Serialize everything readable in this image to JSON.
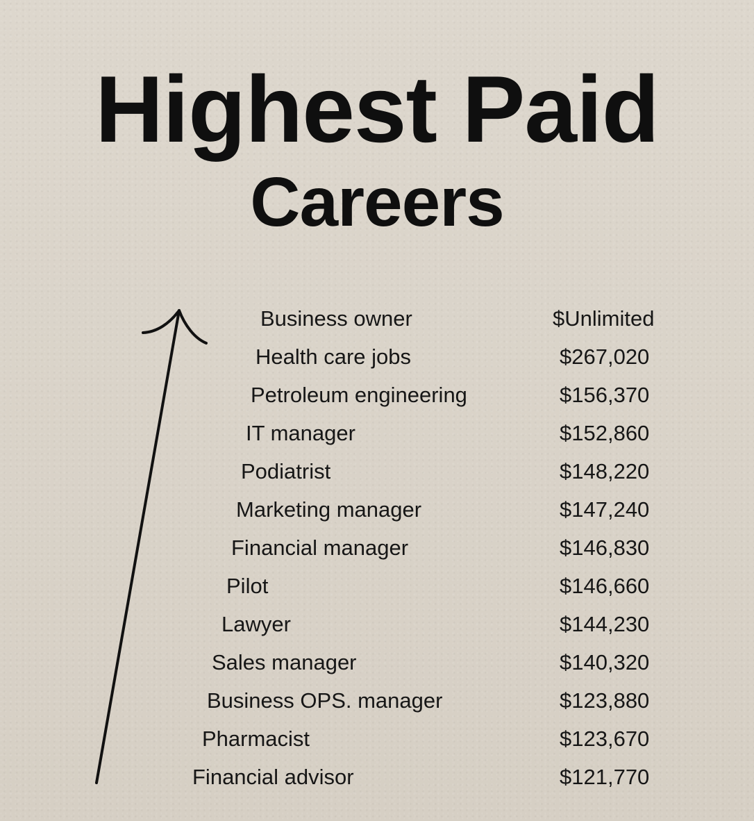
{
  "title": {
    "line1": "Highest Paid",
    "line2": "Careers"
  },
  "arrow_icon": "up-arrow-icon",
  "careers": [
    {
      "name": "Business owner",
      "salary": "$Unlimited"
    },
    {
      "name": "Health care jobs",
      "salary": "$267,020"
    },
    {
      "name": "Petroleum engineering",
      "salary": "$156,370"
    },
    {
      "name": "IT manager",
      "salary": "$152,860"
    },
    {
      "name": "Podiatrist",
      "salary": "$148,220"
    },
    {
      "name": "Marketing manager",
      "salary": "$147,240"
    },
    {
      "name": "Financial manager",
      "salary": "$146,830"
    },
    {
      "name": "Pilot",
      "salary": "$146,660"
    },
    {
      "name": "Lawyer",
      "salary": "$144,230"
    },
    {
      "name": "Sales manager",
      "salary": "$140,320"
    },
    {
      "name": "Business OPS. manager",
      "salary": "$123,880"
    },
    {
      "name": "Pharmacist",
      "salary": "$123,670"
    },
    {
      "name": "Financial advisor",
      "salary": "$121,770"
    }
  ],
  "colors": {
    "background": "#d9d2c8",
    "text": "#111111"
  }
}
